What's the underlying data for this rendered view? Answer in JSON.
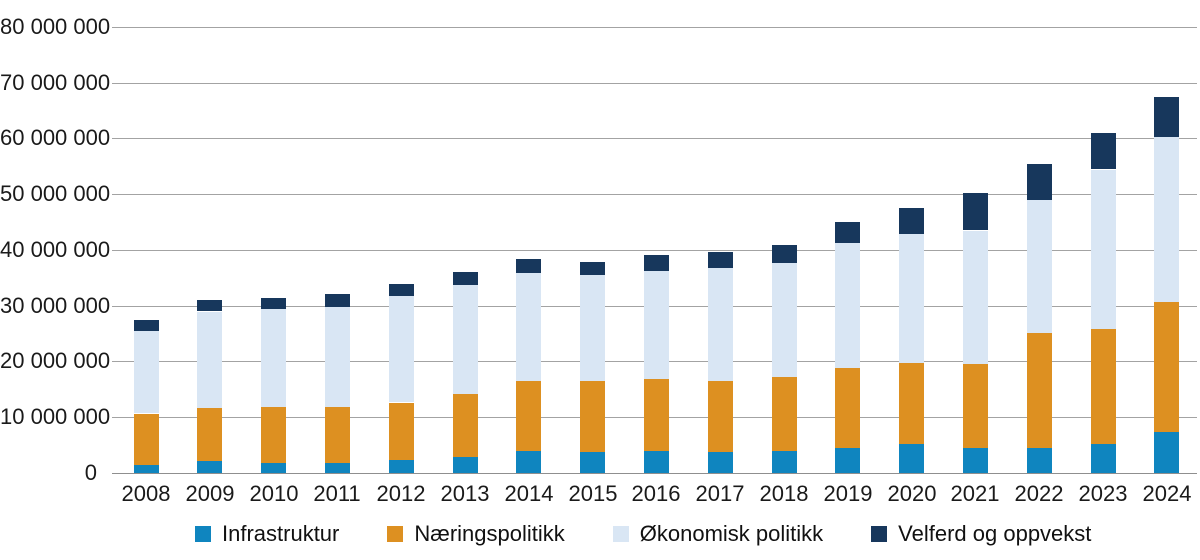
{
  "chart_data": {
    "type": "bar",
    "stacked": true,
    "title": "",
    "xlabel": "",
    "ylabel": "",
    "ylim": [
      0,
      80000000
    ],
    "grid": "horizontal",
    "legend_position": "bottom",
    "categories": [
      "2008",
      "2009",
      "2010",
      "2011",
      "2012",
      "2013",
      "2014",
      "2015",
      "2016",
      "2017",
      "2018",
      "2019",
      "2020",
      "2021",
      "2022",
      "2023",
      "2024"
    ],
    "y_tick_labels": [
      "0",
      "10 000 000",
      "20 000 000",
      "30 000 000",
      "40 000 000",
      "50 000 000",
      "60 000 000",
      "70 000 000",
      "80 000 000"
    ],
    "series": [
      {
        "name": "Infrastruktur",
        "color": "#0f85bf",
        "values": [
          1500000,
          2100000,
          1800000,
          1800000,
          2400000,
          2900000,
          4000000,
          3700000,
          4000000,
          3700000,
          4000000,
          4400000,
          5200000,
          4500000,
          4400000,
          5200000,
          7300000
        ]
      },
      {
        "name": "Næringspolitikk",
        "color": "#dd9021",
        "values": [
          9200000,
          9600000,
          10000000,
          10000000,
          10300000,
          11300000,
          12500000,
          12800000,
          12900000,
          12800000,
          13200000,
          14400000,
          14500000,
          15100000,
          20700000,
          20700000,
          23300000
        ]
      },
      {
        "name": "Økonomisk politikk",
        "color": "#d9e6f4",
        "values": [
          14700000,
          17300000,
          17600000,
          17900000,
          19100000,
          19600000,
          19400000,
          19000000,
          19400000,
          20200000,
          20400000,
          22500000,
          23100000,
          23900000,
          23800000,
          28600000,
          29600000
        ]
      },
      {
        "name": "Velferd og oppvekst",
        "color": "#17375c",
        "values": [
          1900000,
          2000000,
          2000000,
          2400000,
          2200000,
          2300000,
          2600000,
          2300000,
          2800000,
          2800000,
          3300000,
          3800000,
          4700000,
          6700000,
          6500000,
          6500000,
          7200000
        ]
      }
    ]
  },
  "layout_colors": {
    "gridline": "#a3a3a3",
    "axis_line": "#8f8f8f",
    "text": "#1a1a1a"
  }
}
